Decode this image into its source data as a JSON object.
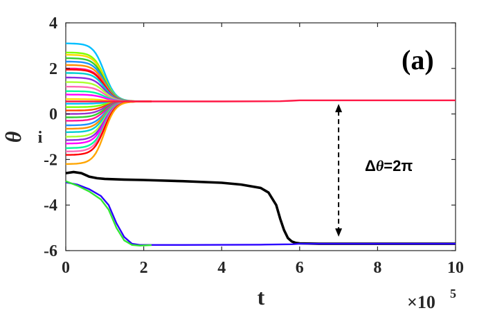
{
  "chart_data": {
    "type": "line",
    "title": "",
    "xlabel": "t",
    "ylabel": "θ",
    "ylabel_subscript": "i",
    "x_exponent_label": "×10",
    "x_exponent_power": "5",
    "panel_label": "(a)",
    "annotation": {
      "prefix": "Δ",
      "symbol": "θ",
      "value": "=2π",
      "x": 7.0,
      "y_top": 0.5,
      "y_bottom": -5.45
    },
    "xlim": [
      0,
      10
    ],
    "ylim": [
      -6,
      4
    ],
    "x_ticks": [
      "0",
      "2",
      "4",
      "6",
      "8",
      "10"
    ],
    "y_ticks": [
      "-6",
      "-4",
      "-2",
      "0",
      "2",
      "4"
    ],
    "grid": false,
    "legend": "none",
    "sync_level_upper": 0.57,
    "sync_level_lower": -5.72,
    "upper_group": {
      "description_colors": [
        "#00bfff",
        "#ffd700",
        "#ff1493",
        "#32cd32",
        "#8a2be2",
        "#ff8c00",
        "#00ced1",
        "#ff00ff",
        "#7fff00",
        "#1e90ff",
        "#ff4500",
        "#00fa9a",
        "#ff69b4",
        "#9932cc",
        "#adff2f",
        "#ff0000"
      ],
      "initial_values": [
        3.1,
        2.7,
        2.6,
        2.45,
        2.3,
        2.15,
        2.0,
        1.95,
        1.8,
        1.6,
        1.4,
        1.2,
        1.0,
        0.85,
        0.65,
        0.45,
        0.3,
        0.15,
        0.0,
        -0.15,
        -0.3,
        -0.5,
        -0.65,
        -0.8,
        -1.0,
        -1.15,
        -1.3,
        -1.5,
        -1.65,
        -1.8,
        -2.2
      ],
      "color_map": [
        "#00bfff",
        "#7fff00",
        "#ffd700",
        "#32cd32",
        "#1e90ff",
        "#ff8c00",
        "#ff1493",
        "#ff0000",
        "#00ced1",
        "#8a2be2",
        "#adff2f",
        "#ff69b4",
        "#00fa9a",
        "#ff00ff",
        "#ffd700",
        "#00bfff",
        "#7fff00",
        "#ff4500",
        "#9932cc",
        "#32cd32",
        "#ff1493",
        "#1e90ff",
        "#ff8c00",
        "#00ced1",
        "#adff2f",
        "#8a2be2",
        "#ff00ff",
        "#00fa9a",
        "#ff69b4",
        "#ff0000",
        "#ffa500"
      ],
      "converge_time": 1.6,
      "final_value": 0.55
    },
    "series": [
      {
        "color": "#ff1744",
        "x": [
          0,
          2,
          4,
          5.5,
          5.8,
          6,
          8,
          10
        ],
        "y": [
          0.55,
          0.55,
          0.55,
          0.56,
          0.58,
          0.6,
          0.6,
          0.6
        ]
      },
      {
        "color": "#000000",
        "x": [
          0,
          0.2,
          0.4,
          0.6,
          0.8,
          1,
          1.5,
          2,
          3,
          4,
          4.5,
          5,
          5.2,
          5.4,
          5.5,
          5.6,
          5.7,
          5.8,
          5.9,
          6,
          6.5,
          8,
          10
        ],
        "y": [
          -2.6,
          -2.55,
          -2.6,
          -2.75,
          -2.82,
          -2.85,
          -2.88,
          -2.9,
          -2.95,
          -3.02,
          -3.1,
          -3.25,
          -3.45,
          -4.0,
          -4.6,
          -5.1,
          -5.45,
          -5.6,
          -5.66,
          -5.68,
          -5.7,
          -5.7,
          -5.7
        ]
      },
      {
        "color": "#2a00ff",
        "x": [
          0,
          0.3,
          0.6,
          0.9,
          1.1,
          1.3,
          1.5,
          1.7,
          1.9,
          2.2,
          3,
          5,
          5.8,
          6,
          8,
          10
        ],
        "y": [
          -3.0,
          -3.1,
          -3.3,
          -3.6,
          -4.0,
          -4.8,
          -5.4,
          -5.7,
          -5.75,
          -5.75,
          -5.75,
          -5.74,
          -5.72,
          -5.7,
          -5.7,
          -5.7
        ]
      },
      {
        "color": "#32e632",
        "x": [
          0,
          0.3,
          0.6,
          0.9,
          1.1,
          1.3,
          1.5,
          1.7,
          1.9,
          2.2
        ],
        "y": [
          -2.95,
          -3.15,
          -3.4,
          -3.75,
          -4.2,
          -5.0,
          -5.55,
          -5.75,
          -5.78,
          -5.76
        ]
      }
    ]
  }
}
